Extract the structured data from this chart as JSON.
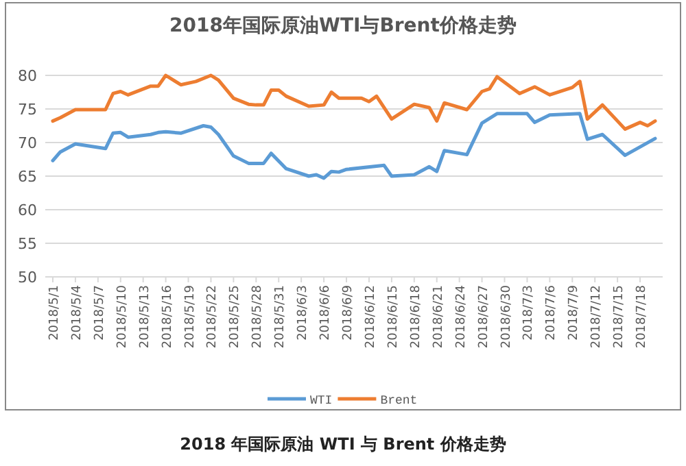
{
  "chart_data": {
    "type": "line",
    "title": "2018年国际原油WTI与Brent价格走势",
    "ylim": [
      50,
      80
    ],
    "yticks": [
      50,
      55,
      60,
      65,
      70,
      75,
      80
    ],
    "grid": "y",
    "legend": "bottom",
    "xlim": [
      "2018-04-30",
      "2018-07-21"
    ],
    "xticks": [
      {
        "value": "2018-05-01",
        "label": "2018/5/1"
      },
      {
        "value": "2018-05-04",
        "label": "2018/5/4"
      },
      {
        "value": "2018-05-07",
        "label": "2018/5/7"
      },
      {
        "value": "2018-05-10",
        "label": "2018/5/10"
      },
      {
        "value": "2018-05-13",
        "label": "2018/5/13"
      },
      {
        "value": "2018-05-16",
        "label": "2018/5/16"
      },
      {
        "value": "2018-05-19",
        "label": "2018/5/19"
      },
      {
        "value": "2018-05-22",
        "label": "2018/5/22"
      },
      {
        "value": "2018-05-25",
        "label": "2018/5/25"
      },
      {
        "value": "2018-05-28",
        "label": "2018/5/28"
      },
      {
        "value": "2018-05-31",
        "label": "2018/5/31"
      },
      {
        "value": "2018-06-03",
        "label": "2018/6/3"
      },
      {
        "value": "2018-06-06",
        "label": "2018/6/6"
      },
      {
        "value": "2018-06-09",
        "label": "2018/6/9"
      },
      {
        "value": "2018-06-12",
        "label": "2018/6/12"
      },
      {
        "value": "2018-06-15",
        "label": "2018/6/15"
      },
      {
        "value": "2018-06-18",
        "label": "2018/6/18"
      },
      {
        "value": "2018-06-21",
        "label": "2018/6/21"
      },
      {
        "value": "2018-06-24",
        "label": "2018/6/24"
      },
      {
        "value": "2018-06-27",
        "label": "2018/6/27"
      },
      {
        "value": "2018-06-30",
        "label": "2018/6/30"
      },
      {
        "value": "2018-07-03",
        "label": "2018/7/3"
      },
      {
        "value": "2018-07-06",
        "label": "2018/7/6"
      },
      {
        "value": "2018-07-09",
        "label": "2018/7/9"
      },
      {
        "value": "2018-07-12",
        "label": "2018/7/12"
      },
      {
        "value": "2018-07-15",
        "label": "2018/7/15"
      },
      {
        "value": "2018-07-18",
        "label": "2018/7/18"
      }
    ],
    "series": [
      {
        "name": "WTI",
        "color": "#5b9bd5",
        "x": [
          "2018-05-01",
          "2018-05-02",
          "2018-05-04",
          "2018-05-08",
          "2018-05-09",
          "2018-05-10",
          "2018-05-11",
          "2018-05-14",
          "2018-05-15",
          "2018-05-16",
          "2018-05-18",
          "2018-05-21",
          "2018-05-22",
          "2018-05-23",
          "2018-05-25",
          "2018-05-27",
          "2018-05-29",
          "2018-05-30",
          "2018-06-01",
          "2018-06-04",
          "2018-06-05",
          "2018-06-06",
          "2018-06-07",
          "2018-06-08",
          "2018-06-09",
          "2018-06-14",
          "2018-06-15",
          "2018-06-18",
          "2018-06-20",
          "2018-06-21",
          "2018-06-22",
          "2018-06-25",
          "2018-06-27",
          "2018-06-29",
          "2018-07-03",
          "2018-07-04",
          "2018-07-06",
          "2018-07-10",
          "2018-07-11",
          "2018-07-13",
          "2018-07-16",
          "2018-07-20"
        ],
        "values": [
          67.3,
          68.6,
          69.8,
          69.1,
          71.4,
          71.5,
          70.8,
          71.2,
          71.5,
          71.6,
          71.4,
          72.5,
          72.3,
          71.2,
          68.0,
          66.9,
          66.9,
          68.4,
          66.1,
          65.0,
          65.2,
          64.7,
          65.7,
          65.6,
          66.0,
          66.6,
          65.0,
          65.2,
          66.4,
          65.7,
          68.8,
          68.2,
          72.9,
          74.3,
          74.3,
          73.0,
          74.1,
          74.3,
          70.5,
          71.2,
          68.1,
          70.6
        ]
      },
      {
        "name": "Brent",
        "color": "#ed7d31",
        "x": [
          "2018-05-01",
          "2018-05-02",
          "2018-05-04",
          "2018-05-08",
          "2018-05-09",
          "2018-05-10",
          "2018-05-11",
          "2018-05-14",
          "2018-05-15",
          "2018-05-16",
          "2018-05-18",
          "2018-05-20",
          "2018-05-22",
          "2018-05-23",
          "2018-05-25",
          "2018-05-27",
          "2018-05-28",
          "2018-05-29",
          "2018-05-30",
          "2018-05-31",
          "2018-06-01",
          "2018-06-04",
          "2018-06-06",
          "2018-06-07",
          "2018-06-08",
          "2018-06-09",
          "2018-06-11",
          "2018-06-12",
          "2018-06-13",
          "2018-06-15",
          "2018-06-18",
          "2018-06-20",
          "2018-06-21",
          "2018-06-22",
          "2018-06-25",
          "2018-06-27",
          "2018-06-28",
          "2018-06-29",
          "2018-07-02",
          "2018-07-04",
          "2018-07-06",
          "2018-07-09",
          "2018-07-10",
          "2018-07-11",
          "2018-07-13",
          "2018-07-16",
          "2018-07-18",
          "2018-07-19",
          "2018-07-20"
        ],
        "values": [
          73.2,
          73.7,
          74.9,
          74.9,
          77.3,
          77.6,
          77.1,
          78.4,
          78.4,
          80.0,
          78.6,
          79.1,
          80.0,
          79.3,
          76.6,
          75.7,
          75.6,
          75.6,
          77.8,
          77.8,
          76.9,
          75.4,
          75.6,
          77.5,
          76.6,
          76.6,
          76.6,
          76.1,
          76.9,
          73.5,
          75.7,
          75.2,
          73.2,
          75.9,
          74.9,
          77.6,
          78.0,
          79.8,
          77.3,
          78.3,
          77.1,
          78.2,
          79.1,
          73.5,
          75.6,
          72.0,
          73.0,
          72.5,
          73.2
        ]
      }
    ],
    "annotations": [
      "2018 年国际原油 WTI 与 Brent 价格走势"
    ]
  }
}
